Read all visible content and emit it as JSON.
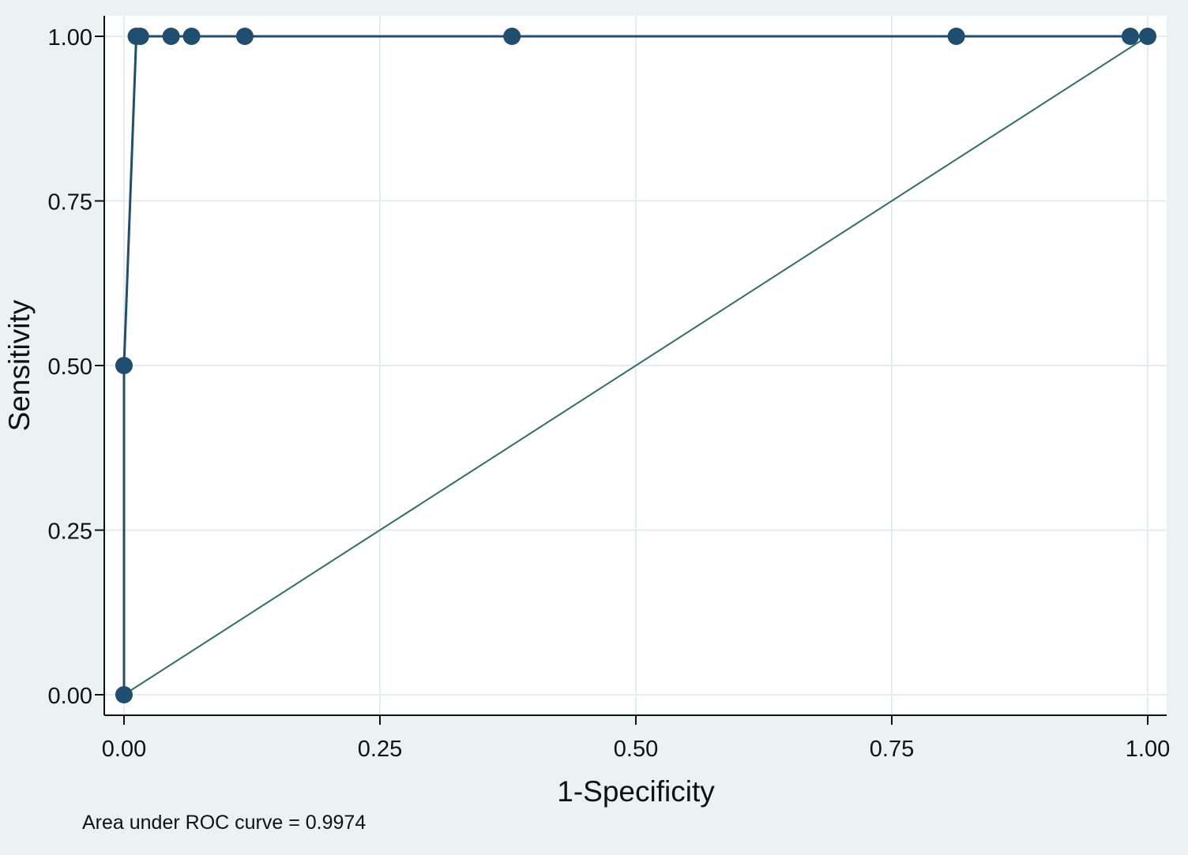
{
  "chart_data": {
    "type": "line",
    "title": "",
    "xlabel": "1-Specificity",
    "ylabel": "Sensitivity",
    "xlim": [
      0,
      1
    ],
    "ylim": [
      0,
      1
    ],
    "x_ticks": [
      "0.00",
      "0.25",
      "0.50",
      "0.75",
      "1.00"
    ],
    "y_ticks": [
      "0.00",
      "0.25",
      "0.50",
      "0.75",
      "1.00"
    ],
    "grid": true,
    "legend": "none",
    "series": [
      {
        "marker": "circle",
        "color": "#1f4e6f",
        "x": [
          0.0,
          0.0,
          0.012,
          0.016,
          0.046,
          0.066,
          0.118,
          0.379,
          0.813,
          0.983,
          1.0
        ],
        "y": [
          0.0,
          0.5,
          1.0,
          1.0,
          1.0,
          1.0,
          1.0,
          1.0,
          1.0,
          1.0,
          1.0
        ]
      }
    ],
    "reference_line": {
      "x": [
        0,
        1
      ],
      "y": [
        0,
        1
      ],
      "color": "#2e7066"
    },
    "annotation": "Area under ROC curve = 0.9974",
    "colors": {
      "background": "#eaf2f3",
      "plot_area": "#ffffff",
      "grid": "#e3ecee",
      "curve": "#1f4e6f",
      "reference": "#2e7066"
    }
  }
}
